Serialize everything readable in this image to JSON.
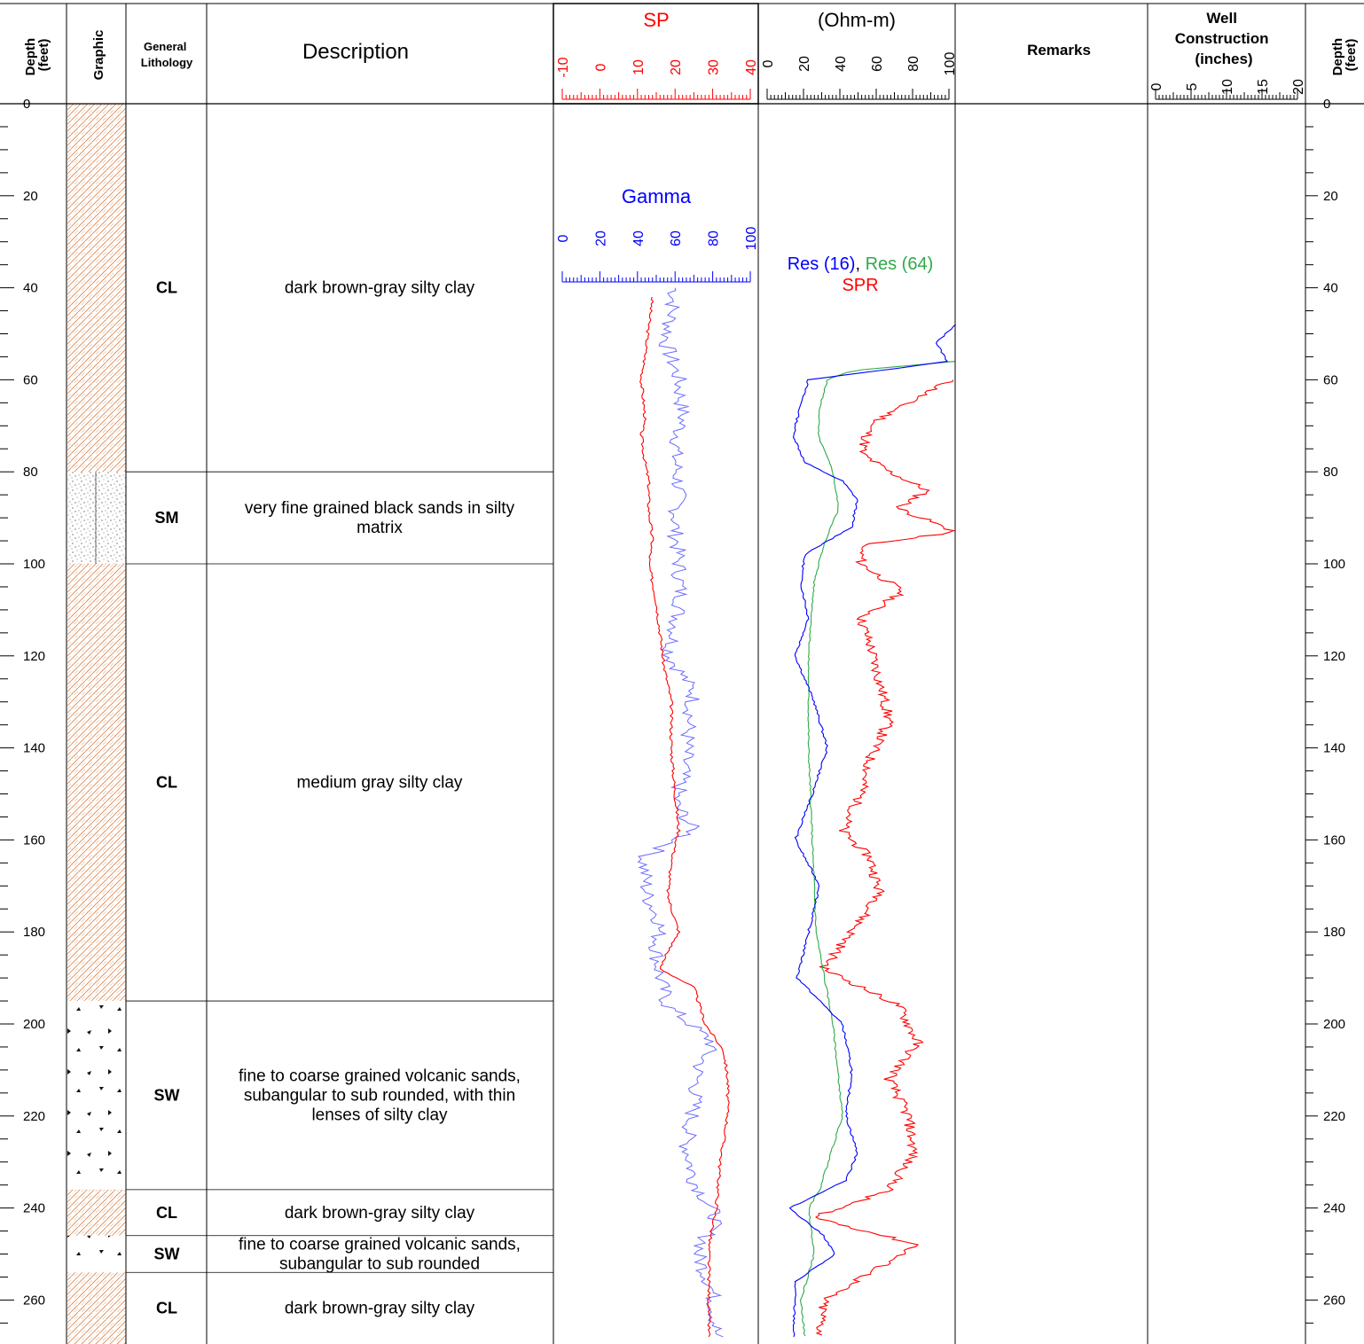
{
  "header": {
    "depth_left": [
      "Depth",
      "(feet)"
    ],
    "graphic": "Graphic",
    "lithology": [
      "General",
      "Lithology"
    ],
    "description": "Description",
    "sp_title": "SP",
    "ohm_title": "(Ohm-m)",
    "remarks": "Remarks",
    "well": [
      "Well",
      "Construction",
      "(inches)"
    ],
    "depth_right": [
      "Depth",
      "(feet)"
    ]
  },
  "colors": {
    "sp": "#ff0000",
    "gamma": "#0000ff",
    "gamma_trace": "#6a6aff",
    "res16": "#0000ff",
    "res64": "#2eaa4a",
    "spr": "#ff0000",
    "clay": "#d9824a",
    "grid": "#000000"
  },
  "units": [
    {
      "top": 0,
      "bottom": 80,
      "code": "CL",
      "pattern": "clay",
      "desc": [
        "dark brown-gray silty clay"
      ]
    },
    {
      "top": 80,
      "bottom": 100,
      "code": "SM",
      "pattern": "silty-sand",
      "desc": [
        "very fine grained black sands in silty",
        "matrix"
      ]
    },
    {
      "top": 100,
      "bottom": 195,
      "code": "CL",
      "pattern": "clay",
      "desc": [
        "medium gray silty clay"
      ]
    },
    {
      "top": 195,
      "bottom": 236,
      "code": "SW",
      "pattern": "gravel-sand",
      "desc": [
        "fine to coarse grained volcanic sands,",
        "subangular to sub rounded, with thin",
        "lenses of silty clay"
      ]
    },
    {
      "top": 236,
      "bottom": 246,
      "code": "CL",
      "pattern": "clay",
      "desc": [
        "dark brown-gray silty clay"
      ]
    },
    {
      "top": 246,
      "bottom": 254,
      "code": "SW",
      "pattern": "gravel-sand",
      "desc": [
        "fine to coarse grained volcanic sands,",
        "subangular to sub rounded"
      ]
    },
    {
      "top": 254,
      "bottom": 270,
      "code": "CL",
      "pattern": "clay",
      "desc": [
        "dark brown-gray silty clay"
      ]
    }
  ],
  "chart_data": {
    "type": "line",
    "depth_axis": {
      "label": "Depth (feet)",
      "range": [
        0,
        270
      ],
      "ticks": [
        0,
        20,
        40,
        60,
        80,
        100,
        120,
        140,
        160,
        180,
        200,
        220,
        240,
        260
      ]
    },
    "tracks": [
      {
        "name": "SP/Gamma",
        "axes": [
          {
            "title": "SP",
            "range": [
              -10,
              40
            ],
            "ticks": [
              "-10",
              "0",
              "10",
              "20",
              "30",
              "40"
            ]
          },
          {
            "title": "Gamma",
            "range": [
              0,
              100
            ],
            "ticks": [
              "0",
              "20",
              "40",
              "60",
              "80",
              "100"
            ]
          }
        ],
        "series": [
          {
            "name": "SP",
            "axis": "SP",
            "depth": [
              42,
              48,
              55,
              60,
              68,
              72,
              78,
              82,
              88,
              95,
              100,
              108,
              115,
              122,
              130,
              140,
              150,
              158,
              165,
              172,
              180,
              186,
              188,
              192,
              200,
              206,
              212,
              220,
              230,
              240,
              248,
              258,
              268
            ],
            "values": [
              14,
              13,
              12,
              11,
              12,
              11,
              12,
              13,
              13,
              14,
              13,
              15,
              16,
              17,
              19,
              19,
              20,
              21,
              19,
              18,
              21,
              17,
              16,
              25,
              28,
              33,
              34,
              34,
              32,
              31,
              29,
              29,
              29
            ]
          },
          {
            "name": "Gamma",
            "axis": "Gamma",
            "depth": [
              40,
              46,
              52,
              60,
              68,
              76,
              84,
              92,
              100,
              108,
              114,
              120,
              128,
              136,
              144,
              152,
              158,
              164,
              172,
              178,
              184,
              190,
              196,
              204,
              210,
              218,
              226,
              234,
              242,
              250,
              258,
              268
            ],
            "values": [
              60,
              58,
              55,
              62,
              64,
              60,
              62,
              60,
              62,
              63,
              60,
              57,
              70,
              67,
              65,
              60,
              70,
              43,
              45,
              52,
              50,
              52,
              56,
              80,
              72,
              70,
              66,
              70,
              82,
              72,
              80,
              82
            ]
          }
        ]
      },
      {
        "name": "Resistivity",
        "axes": [
          {
            "title": "(Ohm-m)",
            "range": [
              0,
              100
            ],
            "ticks": [
              "0",
              "20",
              "40",
              "60",
              "80",
              "100"
            ]
          }
        ],
        "legend": [
          "Res (16)",
          "Res (64)",
          "SPR"
        ],
        "series": [
          {
            "name": "Res (16)",
            "depth": [
              48,
              52,
              56,
              58,
              60,
              65,
              72,
              78,
              82,
              86,
              92,
              98,
              104,
              112,
              120,
              130,
              140,
              150,
              160,
              170,
              180,
              190,
              200,
              210,
              220,
              228,
              234,
              240,
              246,
              250,
              256,
              268
            ],
            "values": [
              100,
              90,
              96,
              60,
              22,
              18,
              14,
              20,
              40,
              48,
              45,
              20,
              18,
              22,
              15,
              25,
              32,
              24,
              15,
              28,
              22,
              16,
              40,
              45,
              42,
              48,
              42,
              12,
              30,
              36,
              15,
              14
            ]
          },
          {
            "name": "Res (64)",
            "depth": [
              56,
              58,
              60,
              66,
              72,
              80,
              88,
              96,
              104,
              120,
              140,
              160,
              180,
              200,
              220,
              236,
              240,
              250,
              260,
              268
            ],
            "values": [
              100,
              45,
              32,
              28,
              27,
              35,
              38,
              30,
              25,
              22,
              22,
              24,
              26,
              35,
              40,
              28,
              22,
              25,
              18,
              20
            ]
          },
          {
            "name": "SPR",
            "depth": [
              60,
              66,
              70,
              76,
              80,
              84,
              88,
              93,
              96,
              100,
              106,
              112,
              118,
              126,
              134,
              142,
              150,
              158,
              164,
              172,
              180,
              188,
              196,
              204,
              212,
              220,
              228,
              236,
              242,
              248,
              254,
              260,
              268
            ],
            "values": [
              98,
              70,
              55,
              50,
              65,
              85,
              70,
              100,
              50,
              50,
              72,
              50,
              55,
              60,
              65,
              55,
              50,
              40,
              55,
              60,
              45,
              30,
              70,
              80,
              65,
              75,
              78,
              65,
              25,
              80,
              55,
              30,
              28
            ]
          }
        ]
      },
      {
        "name": "Well Construction",
        "axes": [
          {
            "title": "(inches)",
            "range": [
              0,
              20
            ],
            "ticks": [
              "0",
              "5",
              "10",
              "15",
              "20"
            ]
          }
        ],
        "series": []
      }
    ]
  }
}
